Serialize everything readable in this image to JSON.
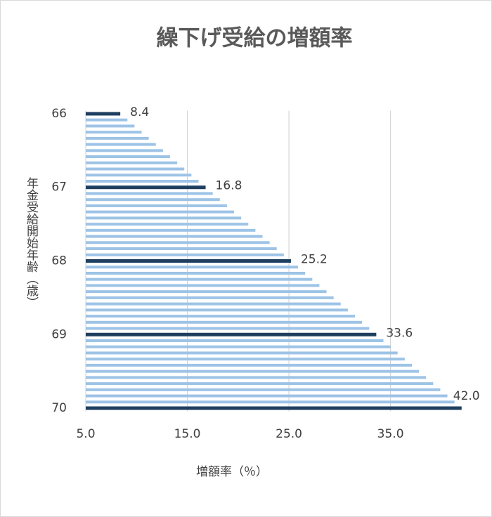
{
  "chart_data": {
    "type": "barh",
    "title": "繰下げ受給の増額率",
    "x_label": "増額率（％）",
    "y_label": "年金受給開始年齢（歳）",
    "categories": [
      "66",
      null,
      null,
      null,
      null,
      null,
      null,
      null,
      null,
      null,
      null,
      null,
      "67",
      null,
      null,
      null,
      null,
      null,
      null,
      null,
      null,
      null,
      null,
      null,
      "68",
      null,
      null,
      null,
      null,
      null,
      null,
      null,
      null,
      null,
      null,
      null,
      "69",
      null,
      null,
      null,
      null,
      null,
      null,
      null,
      null,
      null,
      null,
      null,
      "70"
    ],
    "values": [
      8.4,
      9.1,
      9.8,
      10.5,
      11.2,
      11.9,
      12.6,
      13.3,
      14.0,
      14.7,
      15.4,
      16.1,
      16.8,
      17.5,
      18.2,
      18.9,
      19.6,
      20.3,
      21.0,
      21.7,
      22.4,
      23.1,
      23.8,
      24.5,
      25.2,
      25.9,
      26.6,
      27.3,
      28.0,
      28.7,
      29.4,
      30.1,
      30.8,
      31.5,
      32.2,
      32.9,
      33.6,
      34.3,
      35.0,
      35.7,
      36.4,
      37.1,
      37.8,
      38.5,
      39.2,
      39.9,
      40.6,
      41.3,
      42.0
    ],
    "value_labels": [
      "8.4",
      null,
      null,
      null,
      null,
      null,
      null,
      null,
      null,
      null,
      null,
      null,
      "16.8",
      null,
      null,
      null,
      null,
      null,
      null,
      null,
      null,
      null,
      null,
      null,
      "25.2",
      null,
      null,
      null,
      null,
      null,
      null,
      null,
      null,
      null,
      null,
      null,
      "33.6",
      null,
      null,
      null,
      null,
      null,
      null,
      null,
      null,
      null,
      null,
      null,
      "42.0"
    ],
    "colors": [
      "#1f3f60",
      "#9dc3e6",
      "#9dc3e6",
      "#9dc3e6",
      "#9dc3e6",
      "#9dc3e6",
      "#9dc3e6",
      "#9dc3e6",
      "#9dc3e6",
      "#9dc3e6",
      "#9dc3e6",
      "#9dc3e6",
      "#1f3f60",
      "#9dc3e6",
      "#9dc3e6",
      "#9dc3e6",
      "#9dc3e6",
      "#9dc3e6",
      "#9dc3e6",
      "#9dc3e6",
      "#9dc3e6",
      "#9dc3e6",
      "#9dc3e6",
      "#9dc3e6",
      "#1f3f60",
      "#9dc3e6",
      "#9dc3e6",
      "#9dc3e6",
      "#9dc3e6",
      "#9dc3e6",
      "#9dc3e6",
      "#9dc3e6",
      "#9dc3e6",
      "#9dc3e6",
      "#9dc3e6",
      "#9dc3e6",
      "#1f3f60",
      "#9dc3e6",
      "#9dc3e6",
      "#9dc3e6",
      "#9dc3e6",
      "#9dc3e6",
      "#9dc3e6",
      "#9dc3e6",
      "#9dc3e6",
      "#9dc3e6",
      "#9dc3e6",
      "#9dc3e6",
      "#1f3f60"
    ],
    "xlim": [
      5,
      42.5
    ],
    "xticks": [
      {
        "value": 5,
        "label": "5.0"
      },
      {
        "value": 15,
        "label": "15.0"
      },
      {
        "value": 25,
        "label": "25.0"
      },
      {
        "value": 35,
        "label": "35.0"
      }
    ],
    "grid": true
  }
}
